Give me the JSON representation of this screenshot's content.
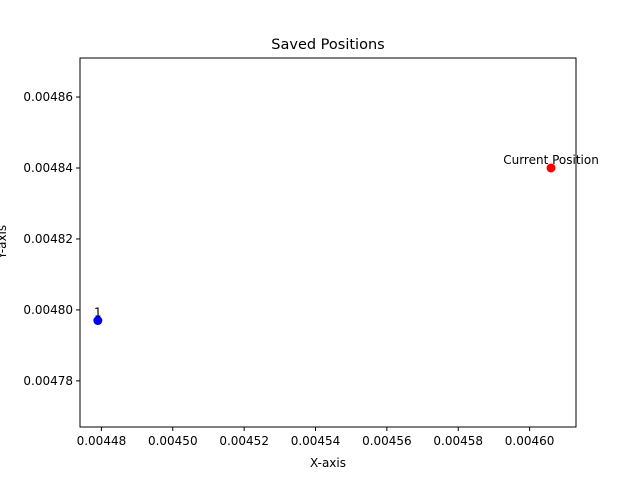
{
  "chart_data": {
    "type": "scatter",
    "title": "Saved Positions",
    "xlabel": "X-axis",
    "ylabel": "Y-axis",
    "xlim": [
      0.004474,
      0.004613
    ],
    "ylim": [
      0.004767,
      0.004871
    ],
    "xticks": [
      "0.00448",
      "0.00450",
      "0.00452",
      "0.00454",
      "0.00456",
      "0.00458",
      "0.00460"
    ],
    "yticks": [
      "0.00478",
      "0.00480",
      "0.00482",
      "0.00484",
      "0.00486"
    ],
    "grid": false,
    "points": [
      {
        "x": 0.004479,
        "y": 0.004797,
        "label": "1",
        "color": "#0000ff"
      },
      {
        "x": 0.004606,
        "y": 0.00484,
        "label": "Current Position",
        "color": "#ff0000"
      }
    ]
  }
}
